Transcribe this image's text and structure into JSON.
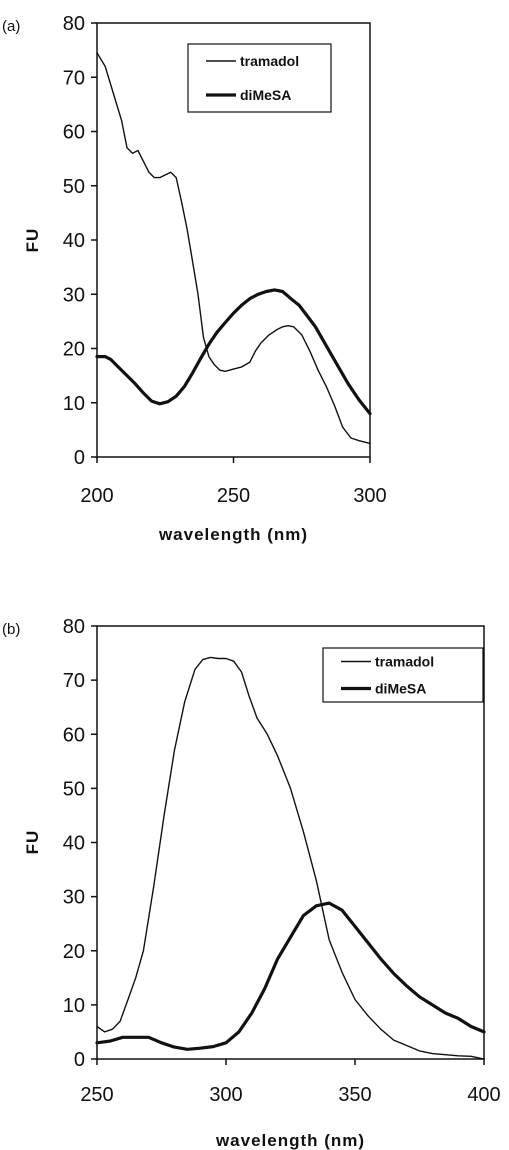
{
  "chart_data": [
    {
      "type": "line",
      "panel_label": "(a)",
      "xlabel": "wavelength (nm)",
      "ylabel": "FU",
      "xlim": [
        200,
        300
      ],
      "ylim": [
        0,
        80
      ],
      "xticks": [
        200,
        250,
        300
      ],
      "yticks": [
        0,
        10,
        20,
        30,
        40,
        50,
        60,
        70,
        80
      ],
      "grid": false,
      "legend": "top-right",
      "series": [
        {
          "name": "tramadol",
          "style": "thin",
          "x": [
            200,
            203,
            206,
            209,
            211,
            213,
            215,
            217,
            219,
            221,
            223,
            225,
            227,
            229,
            231,
            233,
            235,
            237,
            239,
            241,
            243,
            245,
            247,
            250,
            253,
            256,
            258,
            260,
            263,
            266,
            268,
            270,
            272,
            275,
            278,
            281,
            284,
            287,
            290,
            293,
            296,
            300
          ],
          "y": [
            74.5,
            72,
            67,
            62,
            57,
            56,
            56.5,
            54.5,
            52.5,
            51.5,
            51.5,
            52,
            52.5,
            51.5,
            47,
            42,
            36,
            30,
            22,
            18.5,
            17,
            16,
            15.8,
            16.2,
            16.6,
            17.5,
            19.5,
            21,
            22.5,
            23.5,
            24,
            24.2,
            24,
            22.5,
            19.5,
            16,
            13,
            9.5,
            5.5,
            3.5,
            3,
            2.5
          ]
        },
        {
          "name": "diMeSA",
          "style": "thick",
          "x": [
            200,
            203,
            205,
            208,
            211,
            214,
            217,
            220,
            223,
            226,
            229,
            232,
            235,
            238,
            241,
            244,
            247,
            250,
            253,
            256,
            259,
            262,
            265,
            268,
            271,
            274,
            277,
            280,
            284,
            288,
            292,
            296,
            300
          ],
          "y": [
            18.5,
            18.5,
            18,
            16.5,
            15,
            13.5,
            11.8,
            10.3,
            9.8,
            10.2,
            11.2,
            13,
            15.5,
            18.2,
            20.8,
            23,
            24.8,
            26.5,
            28,
            29.2,
            30,
            30.5,
            30.8,
            30.5,
            29.2,
            28,
            26,
            24,
            20.5,
            17,
            13.5,
            10.5,
            8
          ]
        }
      ]
    },
    {
      "type": "line",
      "panel_label": "(b)",
      "xlabel": "wavelength (nm)",
      "ylabel": "FU",
      "xlim": [
        250,
        400
      ],
      "ylim": [
        0,
        80
      ],
      "xticks": [
        250,
        300,
        350,
        400
      ],
      "yticks": [
        0,
        10,
        20,
        30,
        40,
        50,
        60,
        70,
        80
      ],
      "grid": false,
      "legend": "top-right",
      "series": [
        {
          "name": "tramadol",
          "style": "thin",
          "x": [
            250,
            253,
            256,
            259,
            262,
            265,
            268,
            272,
            276,
            280,
            284,
            288,
            291,
            294,
            297,
            300,
            303,
            306,
            309,
            312,
            316,
            320,
            325,
            330,
            335,
            340,
            345,
            350,
            355,
            360,
            365,
            370,
            375,
            380,
            385,
            390,
            395,
            400
          ],
          "y": [
            6,
            5,
            5.5,
            7,
            11,
            15,
            20,
            32,
            45,
            57,
            66,
            72,
            73.8,
            74.2,
            74,
            74,
            73.5,
            71.5,
            67,
            63,
            60,
            56,
            50,
            42,
            33,
            22,
            16,
            11,
            8,
            5.5,
            3.5,
            2.5,
            1.5,
            1,
            0.8,
            0.6,
            0.5,
            0
          ]
        },
        {
          "name": "diMeSA",
          "style": "thick",
          "x": [
            250,
            255,
            260,
            265,
            270,
            275,
            280,
            285,
            290,
            295,
            300,
            305,
            310,
            315,
            320,
            325,
            330,
            335,
            340,
            345,
            350,
            355,
            360,
            365,
            370,
            375,
            380,
            385,
            390,
            395,
            400
          ],
          "y": [
            3,
            3.3,
            4,
            4,
            4,
            3,
            2.2,
            1.8,
            2,
            2.3,
            3,
            5,
            8.5,
            13,
            18.5,
            22.5,
            26.5,
            28.3,
            28.8,
            27.5,
            24.5,
            21.5,
            18.5,
            15.8,
            13.5,
            11.5,
            10,
            8.5,
            7.5,
            6,
            5
          ]
        }
      ]
    }
  ]
}
